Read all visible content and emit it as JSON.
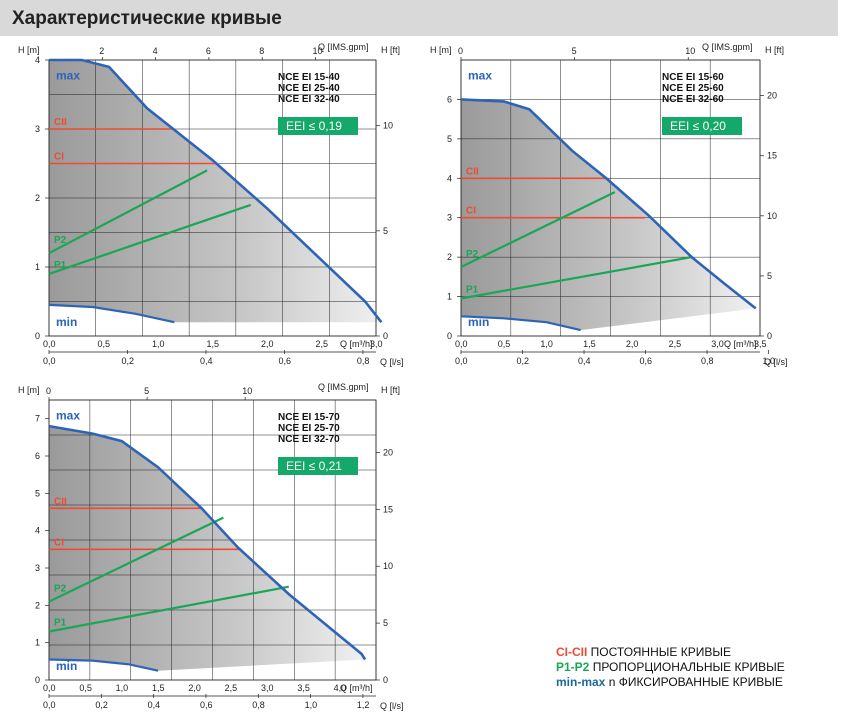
{
  "page": {
    "title": "Характеристические кривые"
  },
  "colors": {
    "max_curve": "#2e64b8",
    "min_curve": "#2e64b8",
    "ci": "#ee4b33",
    "p": "#19a756",
    "eei_bg": "#14a869",
    "grid": "#222222"
  },
  "legend": [
    {
      "key": "CI-CII",
      "text": " ПОСТОЯННЫЕ КРИВЫЕ",
      "color": "#ee4b33"
    },
    {
      "key": "P1-P2",
      "text": " ПРОПОРЦИОНАЛЬНЫЕ КРИВЫЕ",
      "color": "#19a756"
    },
    {
      "key": "min-max",
      "text": " n ФИКСИРОВАННЫЕ КРИВЫЕ",
      "color": "#1a6a9c"
    }
  ],
  "chart_data": [
    {
      "type": "line",
      "models": [
        "NCE EI 15-40",
        "NCE EI 25-40",
        "NCE EI 32-40"
      ],
      "eei": "EEI ≤ 0,19",
      "h_label": "H [m]",
      "hft_label": "H [ft]",
      "qtop_label": "Q [IMS.gpm]",
      "q_label": "Q [m³/h]",
      "qls_label": "Q [l/s]",
      "xlim": [
        0,
        3.0
      ],
      "ylim": [
        0,
        4
      ],
      "x_ticks": [
        "0,0",
        "0,5",
        "1,0",
        "1,5",
        "2,0",
        "2,5",
        "3,0"
      ],
      "y_ticks": [
        "0",
        "1",
        "2",
        "3",
        "4"
      ],
      "top_ticks": [
        "2",
        "4",
        "6",
        "8",
        "10"
      ],
      "ft_ticks": [
        "0",
        "5",
        "10"
      ],
      "ls_ticks": [
        "0,0",
        "0,2",
        "0,4",
        "0,6",
        "0,8"
      ],
      "labels": {
        "max": "max",
        "min": "min",
        "cii": "CII",
        "ci": "CI",
        "p2": "P2",
        "p1": "P1"
      },
      "max_curve": [
        [
          0,
          4.0
        ],
        [
          0.3,
          4.0
        ],
        [
          0.55,
          3.9
        ],
        [
          0.9,
          3.3
        ],
        [
          1.5,
          2.55
        ],
        [
          2.0,
          1.85
        ],
        [
          2.5,
          1.1
        ],
        [
          2.9,
          0.5
        ],
        [
          3.05,
          0.2
        ]
      ],
      "min_curve": [
        [
          0,
          0.45
        ],
        [
          0.4,
          0.42
        ],
        [
          0.8,
          0.32
        ],
        [
          1.15,
          0.2
        ]
      ],
      "cii": {
        "h": 3.0,
        "x_end": 1.15
      },
      "ci": {
        "h": 2.5,
        "x_end": 1.55
      },
      "p2": [
        [
          0,
          1.2
        ],
        [
          1.45,
          2.4
        ]
      ],
      "p1": [
        [
          0,
          0.9
        ],
        [
          1.85,
          1.9
        ]
      ]
    },
    {
      "type": "line",
      "models": [
        "NCE EI 15-60",
        "NCE EI 25-60",
        "NCE EI 32-60"
      ],
      "eei": "EEI ≤ 0,20",
      "h_label": "H [m]",
      "hft_label": "H [ft]",
      "qtop_label": "Q [IMS.gpm]",
      "q_label": "Q [m³/h]",
      "qls_label": "Q [l/s]",
      "xlim": [
        0,
        3.5
      ],
      "ylim": [
        0,
        7
      ],
      "x_ticks": [
        "0,0",
        "0,5",
        "1,0",
        "1,5",
        "2,0",
        "2,5",
        "3,0",
        "3,5"
      ],
      "y_ticks": [
        "0",
        "1",
        "2",
        "3",
        "4",
        "5",
        "6"
      ],
      "top_ticks": [
        "0",
        "5",
        "10"
      ],
      "ft_ticks": [
        "0",
        "5",
        "10",
        "15",
        "20"
      ],
      "ls_ticks": [
        "0,0",
        "0,2",
        "0,4",
        "0,6",
        "0,8",
        "1,0"
      ],
      "labels": {
        "max": "max",
        "min": "min",
        "cii": "CII",
        "ci": "CI",
        "p2": "P2",
        "p1": "P1"
      },
      "max_curve": [
        [
          0,
          6.0
        ],
        [
          0.5,
          5.95
        ],
        [
          0.8,
          5.75
        ],
        [
          1.3,
          4.7
        ],
        [
          1.7,
          4.0
        ],
        [
          2.2,
          3.05
        ],
        [
          2.7,
          2.0
        ],
        [
          3.1,
          1.3
        ],
        [
          3.45,
          0.7
        ]
      ],
      "min_curve": [
        [
          0,
          0.5
        ],
        [
          0.5,
          0.45
        ],
        [
          1.0,
          0.35
        ],
        [
          1.4,
          0.15
        ]
      ],
      "cii": {
        "h": 4.0,
        "x_end": 1.7
      },
      "ci": {
        "h": 3.0,
        "x_end": 2.15
      },
      "p2": [
        [
          0,
          1.75
        ],
        [
          1.8,
          3.65
        ]
      ],
      "p1": [
        [
          0,
          0.95
        ],
        [
          2.7,
          2.0
        ]
      ]
    },
    {
      "type": "line",
      "models": [
        "NCE EI 15-70",
        "NCE EI 25-70",
        "NCE EI 32-70"
      ],
      "eei": "EEI ≤ 0,21",
      "h_label": "H [m]",
      "hft_label": "H [ft]",
      "qtop_label": "Q [IMS.gpm]",
      "q_label": "Q [m³/h]",
      "qls_label": "Q [l/s]",
      "xlim": [
        0,
        4.5
      ],
      "ylim": [
        0,
        7.5
      ],
      "x_ticks": [
        "0,0",
        "0,5",
        "1,0",
        "1,5",
        "2,0",
        "2,5",
        "3,0",
        "3,5",
        "4,0"
      ],
      "y_ticks": [
        "0",
        "1",
        "2",
        "3",
        "4",
        "5",
        "6",
        "7"
      ],
      "top_ticks": [
        "0",
        "5",
        "10"
      ],
      "ft_ticks": [
        "0",
        "5",
        "10",
        "15",
        "20"
      ],
      "ls_ticks": [
        "0,0",
        "0,2",
        "0,4",
        "0,6",
        "0,8",
        "1,0",
        "1,2"
      ],
      "labels": {
        "max": "max",
        "min": "min",
        "cii": "CII",
        "ci": "CI",
        "p2": "P2",
        "p1": "P1"
      },
      "max_curve": [
        [
          0,
          6.8
        ],
        [
          0.6,
          6.6
        ],
        [
          1.0,
          6.4
        ],
        [
          1.5,
          5.7
        ],
        [
          2.1,
          4.6
        ],
        [
          2.6,
          3.55
        ],
        [
          3.3,
          2.3
        ],
        [
          3.8,
          1.5
        ],
        [
          4.3,
          0.7
        ],
        [
          4.35,
          0.55
        ]
      ],
      "min_curve": [
        [
          0,
          0.55
        ],
        [
          0.6,
          0.52
        ],
        [
          1.1,
          0.42
        ],
        [
          1.5,
          0.25
        ]
      ],
      "cii": {
        "h": 4.6,
        "x_end": 2.1
      },
      "ci": {
        "h": 3.5,
        "x_end": 2.65
      },
      "p2": [
        [
          0,
          2.1
        ],
        [
          2.4,
          4.35
        ]
      ],
      "p1": [
        [
          0,
          1.3
        ],
        [
          3.3,
          2.5
        ]
      ]
    }
  ]
}
